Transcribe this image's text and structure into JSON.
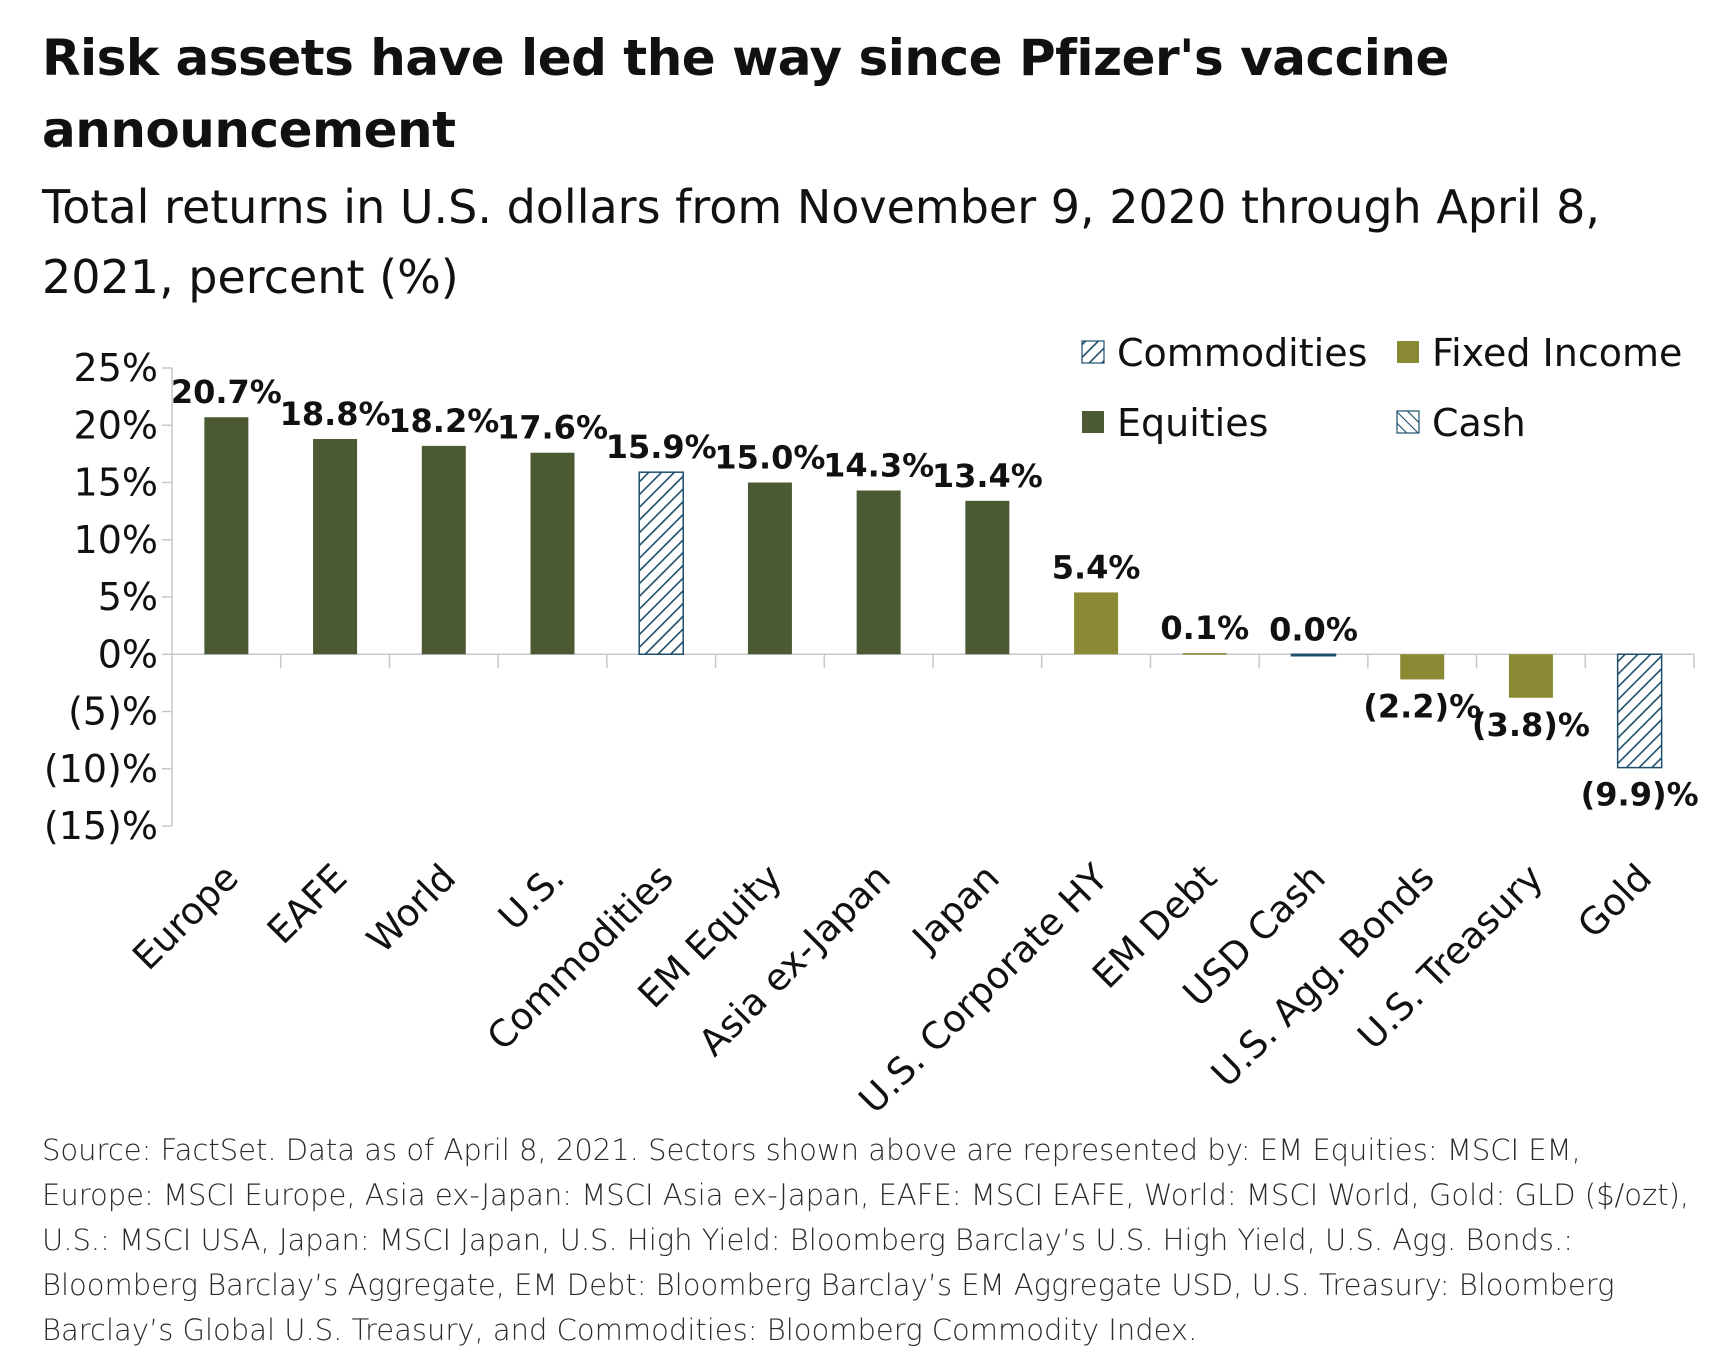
{
  "title": "Risk assets have led the way since Pfizer's vaccine announcement",
  "subtitle": "Total returns in U.S. dollars from November 9, 2020 through April 8, 2021, percent (%)",
  "footnote": "Source: FactSet. Data as of April 8, 2021. Sectors shown above are represented by: EM Equities: MSCI EM, Europe: MSCI Europe, Asia ex-Japan: MSCI Asia ex-Japan, EAFE: MSCI EAFE, World: MSCI World, Gold: GLD ($/ozt), U.S.: MSCI USA, Japan: MSCI Japan, U.S. High Yield: Bloomberg Barclay’s U.S. High Yield, U.S. Agg. Bonds.: Bloomberg Barclay’s Aggregate, EM Debt: Bloomberg Barclay’s EM Aggregate USD, U.S. Treasury: Bloomberg Barclay’s Global U.S. Treasury, and Commodities: Bloomberg Commodity Index.",
  "chart_data": {
    "type": "bar",
    "title": "Risk assets have led the way since Pfizer's vaccine announcement",
    "subtitle": "Total returns in U.S. dollars from November 9, 2020 through April 8, 2021, percent (%)",
    "xlabel": "",
    "ylabel": "",
    "ylim": [
      -15,
      25
    ],
    "yticks": [
      25,
      20,
      15,
      10,
      5,
      0,
      -5,
      -10,
      -15
    ],
    "ytick_labels": [
      "25%",
      "20%",
      "15%",
      "10%",
      "5%",
      "0%",
      "(5)%",
      "(10)%",
      "(15)%"
    ],
    "grid": false,
    "legend_position": "top-right",
    "categories": [
      "Europe",
      "EAFE",
      "World",
      "U.S.",
      "Commodities",
      "EM Equity",
      "Asia ex-Japan",
      "Japan",
      "U.S. Corporate HY",
      "EM Debt",
      "USD Cash",
      "U.S. Agg. Bonds",
      "U.S. Treasury",
      "Gold"
    ],
    "values": [
      20.7,
      18.8,
      18.2,
      17.6,
      15.9,
      15.0,
      14.3,
      13.4,
      5.4,
      0.1,
      0.0,
      -2.2,
      -3.8,
      -9.9
    ],
    "value_labels": [
      "20.7%",
      "18.8%",
      "18.2%",
      "17.6%",
      "15.9%",
      "15.0%",
      "14.3%",
      "13.4%",
      "5.4%",
      "0.1%",
      "0.0%",
      "(2.2)%",
      "(3.8)%",
      "(9.9)%"
    ],
    "groups": [
      "Equities",
      "Equities",
      "Equities",
      "Equities",
      "Commodities",
      "Equities",
      "Equities",
      "Equities",
      "Fixed Income",
      "Fixed Income",
      "Cash",
      "Fixed Income",
      "Fixed Income",
      "Commodities"
    ],
    "legend": [
      {
        "name": "Commodities",
        "style": "hatch",
        "color": "#1d4e6b"
      },
      {
        "name": "Fixed Income",
        "style": "solid",
        "color": "#8a8a35"
      },
      {
        "name": "Equities",
        "style": "solid",
        "color": "#4b5a32"
      },
      {
        "name": "Cash",
        "style": "hatch",
        "color": "#1d4e6b"
      }
    ]
  }
}
